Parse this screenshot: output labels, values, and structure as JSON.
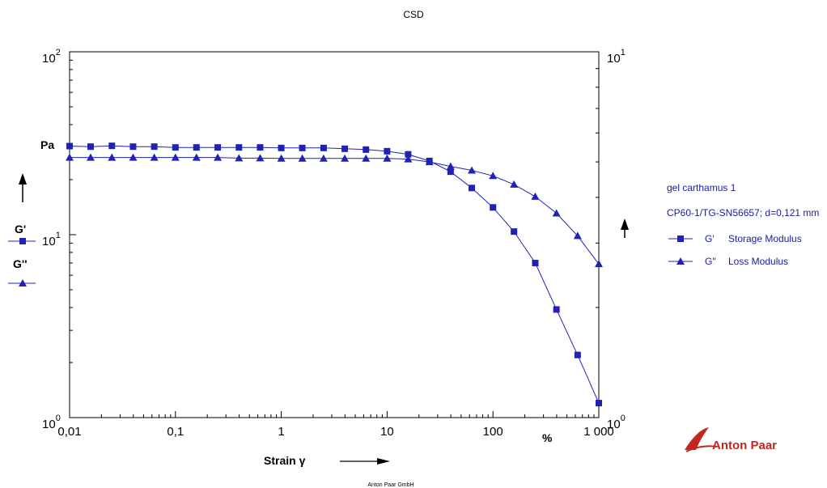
{
  "colors": {
    "series": "#1f22b5",
    "axis": "#000000",
    "brand": "#c0281e"
  },
  "header": {
    "title": "CSD"
  },
  "footer": {
    "company": "Anton Paar GmbH"
  },
  "logo": {
    "text": "Anton Paar"
  },
  "labels": {
    "y_unit": "Pa",
    "g_prime": "G'",
    "g_double_prime": "G''",
    "x_title": "Strain γ",
    "x_unit": "%"
  },
  "legend": {
    "title": "gel carthamus 1",
    "subtitle": "CP60-1/TG-SN56657; d=0,121 mm",
    "items": [
      {
        "symbol": "G'",
        "label": "Storage Modulus",
        "marker": "square"
      },
      {
        "symbol": "G''",
        "label": "Loss Modulus",
        "marker": "triangle"
      }
    ]
  },
  "chart_data": {
    "type": "line",
    "title": "CSD",
    "xlabel": "Strain γ",
    "x_unit": "%",
    "ylabel": "G'",
    "y2label": "G''",
    "y_unit": "Pa",
    "x_scale": "log",
    "y_scale": "log",
    "xlim": [
      0.01,
      1000
    ],
    "ylim": [
      1,
      100
    ],
    "y2lim": [
      1,
      10
    ],
    "x_ticks": [
      {
        "value": 0.01,
        "label": "0,01"
      },
      {
        "value": 0.1,
        "label": "0,1"
      },
      {
        "value": 1,
        "label": "1"
      },
      {
        "value": 10,
        "label": "10"
      },
      {
        "value": 100,
        "label": "100"
      },
      {
        "value": 1000,
        "label": "1 000"
      }
    ],
    "y_ticks": [
      {
        "value": 1,
        "base": "10",
        "exp": "0"
      },
      {
        "value": 10,
        "base": "10",
        "exp": "1"
      },
      {
        "value": 100,
        "base": "10",
        "exp": "2"
      }
    ],
    "y2_ticks": [
      {
        "value": 1,
        "base": "10",
        "exp": "0"
      },
      {
        "value": 10,
        "base": "10",
        "exp": "1"
      }
    ],
    "grid": false,
    "legend_position": "right",
    "series": [
      {
        "name": "G' Storage Modulus",
        "marker": "square",
        "axis": "left",
        "x": [
          0.01,
          0.0158,
          0.0251,
          0.0398,
          0.0631,
          0.1,
          0.158,
          0.251,
          0.398,
          0.631,
          1,
          1.58,
          2.51,
          3.98,
          6.31,
          10,
          15.8,
          25.1,
          39.8,
          63.1,
          100,
          158,
          251,
          398,
          631,
          1000
        ],
        "y": [
          30.5,
          30.3,
          30.6,
          30.3,
          30.3,
          30.0,
          30.0,
          30.0,
          30.0,
          30.0,
          29.8,
          29.8,
          29.8,
          29.5,
          29.2,
          28.6,
          27.5,
          25.3,
          22.1,
          18.0,
          14.1,
          10.4,
          7.0,
          3.9,
          2.2,
          1.2
        ]
      },
      {
        "name": "G'' Loss Modulus",
        "marker": "triangle",
        "axis": "right",
        "x": [
          0.01,
          0.0158,
          0.0251,
          0.0398,
          0.0631,
          0.1,
          0.158,
          0.251,
          0.398,
          0.631,
          1,
          1.58,
          2.51,
          3.98,
          6.31,
          10,
          15.8,
          25.1,
          39.8,
          63.1,
          100,
          158,
          251,
          398,
          631,
          1000
        ],
        "y": [
          5.14,
          5.14,
          5.14,
          5.14,
          5.14,
          5.14,
          5.14,
          5.14,
          5.12,
          5.12,
          5.11,
          5.11,
          5.11,
          5.11,
          5.11,
          5.11,
          5.09,
          5.0,
          4.86,
          4.74,
          4.58,
          4.34,
          4.02,
          3.62,
          3.14,
          2.63
        ]
      }
    ]
  }
}
